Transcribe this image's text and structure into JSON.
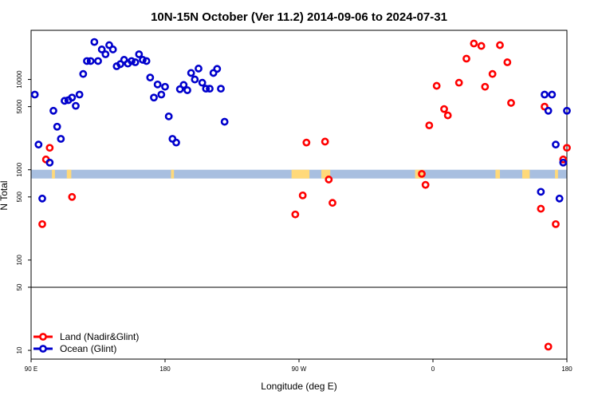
{
  "chart_data": {
    "type": "scatter",
    "title": "10N-15N October (Ver 11.2)   2014-09-06 to 2024-07-31",
    "xlabel": "Longitude (deg E)",
    "ylabel": "N Total",
    "xlim": [
      90,
      450
    ],
    "ylim_log": [
      8,
      35000
    ],
    "x_ticks": [
      {
        "value": 90,
        "label": "90 E"
      },
      {
        "value": 180,
        "label": "180"
      },
      {
        "value": 270,
        "label": "90 W"
      },
      {
        "value": 360,
        "label": "0"
      },
      {
        "value": 450,
        "label": "180"
      }
    ],
    "y_ticks": [
      {
        "value": 10,
        "label": "10"
      },
      {
        "value": 50,
        "label": "50"
      },
      {
        "value": 100,
        "label": "100"
      },
      {
        "value": 500,
        "label": "500"
      },
      {
        "value": 1000,
        "label": "1000"
      },
      {
        "value": 5000,
        "label": "5000"
      },
      {
        "value": 10000,
        "label": "10000"
      }
    ],
    "ref_line": 50,
    "map_band_yrange": [
      800,
      1000
    ],
    "series": [
      {
        "name": "Land (Nadir&Glint)",
        "color": "#ff0000",
        "points": [
          [
            97.5,
            250
          ],
          [
            100,
            1300
          ],
          [
            102.5,
            1750
          ],
          [
            117.5,
            500
          ],
          [
            267.5,
            320
          ],
          [
            272.5,
            520
          ],
          [
            275,
            2000
          ],
          [
            287.5,
            2050
          ],
          [
            290,
            780
          ],
          [
            292.5,
            430
          ],
          [
            352.5,
            900
          ],
          [
            355,
            680
          ],
          [
            357.5,
            3100
          ],
          [
            362.5,
            8500
          ],
          [
            367.5,
            4700
          ],
          [
            370,
            4000
          ],
          [
            377.5,
            9200
          ],
          [
            382.5,
            17000
          ],
          [
            387.5,
            25000
          ],
          [
            392.5,
            23500
          ],
          [
            395,
            8300
          ],
          [
            400,
            11500
          ],
          [
            405,
            24000
          ],
          [
            410,
            15500
          ],
          [
            412.5,
            5500
          ],
          [
            432.5,
            370
          ],
          [
            435,
            5000
          ],
          [
            437.5,
            11
          ],
          [
            442.5,
            250
          ],
          [
            447.5,
            1300
          ],
          [
            450,
            1750
          ]
        ]
      },
      {
        "name": "Ocean (Glint)",
        "color": "#0000cc",
        "points": [
          [
            92.5,
            6800
          ],
          [
            95,
            1900
          ],
          [
            97.5,
            480
          ],
          [
            102.5,
            1200
          ],
          [
            105,
            4500
          ],
          [
            107.5,
            3000
          ],
          [
            110,
            2200
          ],
          [
            112.5,
            5800
          ],
          [
            115,
            5900
          ],
          [
            117.5,
            6300
          ],
          [
            120,
            5100
          ],
          [
            122.5,
            6800
          ],
          [
            125,
            11500
          ],
          [
            127.5,
            16000
          ],
          [
            130,
            16000
          ],
          [
            132.5,
            26000
          ],
          [
            135,
            16000
          ],
          [
            137.5,
            21500
          ],
          [
            140,
            19000
          ],
          [
            142.5,
            24000
          ],
          [
            145,
            21500
          ],
          [
            147.5,
            14000
          ],
          [
            150,
            14800
          ],
          [
            152.5,
            16500
          ],
          [
            155,
            15000
          ],
          [
            157.5,
            16000
          ],
          [
            160,
            15500
          ],
          [
            162.5,
            19000
          ],
          [
            165,
            16500
          ],
          [
            167.5,
            16000
          ],
          [
            170,
            10500
          ],
          [
            172.5,
            6300
          ],
          [
            175,
            8800
          ],
          [
            177.5,
            6800
          ],
          [
            180,
            8300
          ],
          [
            182.5,
            3900
          ],
          [
            185,
            2200
          ],
          [
            187.5,
            2000
          ],
          [
            190,
            7800
          ],
          [
            192.5,
            8700
          ],
          [
            195,
            7600
          ],
          [
            197.5,
            11800
          ],
          [
            200,
            10000
          ],
          [
            202.5,
            13200
          ],
          [
            205,
            9200
          ],
          [
            207.5,
            7900
          ],
          [
            210,
            7900
          ],
          [
            212.5,
            11800
          ],
          [
            215,
            13100
          ],
          [
            217.5,
            7900
          ],
          [
            220,
            3400
          ],
          [
            432.5,
            570
          ],
          [
            435,
            6800
          ],
          [
            437.5,
            4500
          ],
          [
            440,
            6800
          ],
          [
            442.5,
            1900
          ],
          [
            445,
            480
          ],
          [
            447.5,
            1200
          ],
          [
            450,
            4500
          ]
        ]
      }
    ],
    "legend": {
      "position": "bottom-left",
      "entries": [
        "Land (Nadir&Glint)",
        "Ocean (Glint)"
      ]
    },
    "colors": {
      "ocean_band": "#a8bfe0",
      "land_band": "#ffd97a"
    }
  }
}
